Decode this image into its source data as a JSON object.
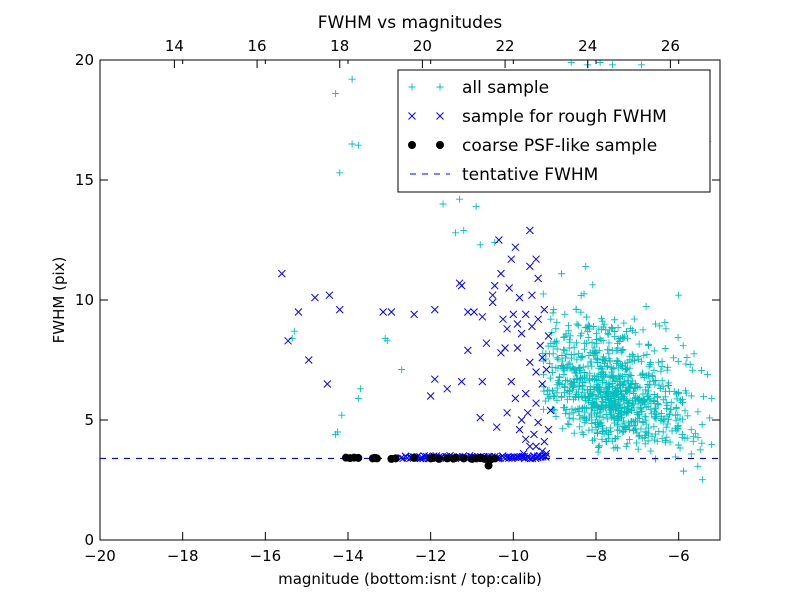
{
  "chart_data": {
    "type": "scatter",
    "title": "FWHM vs magnitudes",
    "xlabel": "magnitude (bottom:isnt / top:calib)",
    "ylabel": "FWHM (pix)",
    "xlim": [
      -20,
      -5
    ],
    "ylim": [
      0,
      20
    ],
    "top_axis": {
      "ticks": [
        14,
        16,
        18,
        20,
        22,
        24,
        26
      ],
      "offset": 32.2
    },
    "x_ticks": [
      "−20",
      "−18",
      "−16",
      "−14",
      "−12",
      "−10",
      "−8",
      "−6"
    ],
    "x_tick_values": [
      -20,
      -18,
      -16,
      -14,
      -12,
      -10,
      -8,
      -6
    ],
    "y_ticks": [
      "0",
      "5",
      "10",
      "15",
      "20"
    ],
    "y_tick_values": [
      0,
      5,
      10,
      15,
      20
    ],
    "grid": false,
    "legend_position": "top-right",
    "series": [
      {
        "name": "all sample",
        "marker": "plus",
        "color": "#00bfbf",
        "points": [
          [
            -14.3,
            18.6
          ],
          [
            -13.9,
            19.2
          ],
          [
            -13.9,
            16.5
          ],
          [
            -13.75,
            16.45
          ],
          [
            -14.2,
            15.3
          ],
          [
            -15.3,
            8.7
          ],
          [
            -15.35,
            8.4
          ],
          [
            -14.15,
            5.2
          ],
          [
            -14.25,
            4.5
          ],
          [
            -14.3,
            4.4
          ],
          [
            -13.7,
            6.3
          ],
          [
            -13.75,
            5.9
          ],
          [
            -13.1,
            8.4
          ],
          [
            -13.05,
            8.3
          ],
          [
            -12.7,
            7.1
          ],
          [
            -11.2,
            12.9
          ],
          [
            -11.4,
            12.8
          ],
          [
            -10.8,
            12.3
          ],
          [
            -10.45,
            12.4
          ],
          [
            -11.3,
            14.2
          ],
          [
            -11.7,
            14.0
          ],
          [
            -10.2,
            15.6
          ],
          [
            -10.9,
            13.9
          ],
          [
            -10.0,
            16.8
          ],
          [
            -12.6,
            16.7
          ],
          [
            -8.6,
            19.9
          ],
          [
            -8.2,
            19.8
          ],
          [
            -7.9,
            19.9
          ],
          [
            -7.6,
            19.8
          ],
          [
            -6.9,
            19.8
          ],
          [
            -5.3,
            16.6
          ],
          [
            -6.0,
            10.2
          ],
          [
            -5.8,
            7.6
          ],
          [
            -5.3,
            6.9
          ],
          [
            -5.2,
            5.9
          ]
        ],
        "cluster": {
          "center": [
            -7.6,
            5.4
          ],
          "spread": [
            0.95,
            1.75
          ],
          "count": 900,
          "xlim": [
            -9.3,
            -5.05
          ],
          "ylim": [
            2.1,
            19.5
          ],
          "seed": 7
        }
      },
      {
        "name": "sample for rough FWHM",
        "marker": "x",
        "color": "#0000ff",
        "points": [
          [
            -15.6,
            11.1
          ],
          [
            -14.8,
            10.1
          ],
          [
            -14.45,
            10.2
          ],
          [
            -15.2,
            9.5
          ],
          [
            -14.2,
            9.6
          ],
          [
            -15.45,
            8.3
          ],
          [
            -14.95,
            7.5
          ],
          [
            -14.5,
            6.5
          ],
          [
            -13.15,
            9.5
          ],
          [
            -12.95,
            9.5
          ],
          [
            -12.4,
            9.4
          ],
          [
            -11.9,
            9.6
          ],
          [
            -11.1,
            9.5
          ],
          [
            -10.95,
            9.5
          ],
          [
            -11.3,
            10.7
          ],
          [
            -11.25,
            10.6
          ],
          [
            -10.75,
            9.3
          ],
          [
            -11.1,
            7.9
          ],
          [
            -12.0,
            6.0
          ],
          [
            -11.6,
            6.3
          ],
          [
            -11.9,
            6.7
          ],
          [
            -11.25,
            6.6
          ],
          [
            -10.75,
            6.6
          ],
          [
            -10.8,
            5.1
          ],
          [
            -10.65,
            8.2
          ],
          [
            -10.45,
            10.6
          ],
          [
            -10.3,
            11.1
          ],
          [
            -10.05,
            11.7
          ],
          [
            -10.35,
            12.5
          ],
          [
            -10.5,
            10.2
          ],
          [
            -10.5,
            9.9
          ],
          [
            -10.2,
            8.0
          ],
          [
            -10.3,
            7.8
          ],
          [
            -10.05,
            6.6
          ],
          [
            -9.95,
            5.9
          ],
          [
            -10.15,
            5.3
          ],
          [
            -10.4,
            4.7
          ],
          [
            -9.85,
            4.6
          ],
          [
            -9.7,
            4.2
          ],
          [
            -9.6,
            11.4
          ],
          [
            -9.4,
            10.9
          ],
          [
            -9.7,
            9.4
          ],
          [
            -9.8,
            8.6
          ],
          [
            -9.9,
            8.0
          ],
          [
            -9.55,
            8.9
          ],
          [
            -9.35,
            8.1
          ],
          [
            -9.6,
            7.4
          ],
          [
            -9.45,
            7.0
          ],
          [
            -9.3,
            6.5
          ],
          [
            -9.7,
            6.1
          ],
          [
            -9.45,
            5.7
          ],
          [
            -9.65,
            5.3
          ],
          [
            -9.4,
            4.9
          ],
          [
            -9.5,
            4.4
          ],
          [
            -9.25,
            4.1
          ],
          [
            -9.6,
            3.9
          ],
          [
            -9.3,
            3.7
          ],
          [
            -9.75,
            3.6
          ],
          [
            -9.55,
            10.2
          ],
          [
            -9.25,
            9.6
          ],
          [
            -9.4,
            9.2
          ],
          [
            -9.15,
            8.5
          ],
          [
            -9.3,
            7.6
          ],
          [
            -9.2,
            7.1
          ],
          [
            -9.1,
            5.4
          ],
          [
            -9.15,
            4.6
          ],
          [
            -10.0,
            9.4
          ],
          [
            -9.9,
            9.0
          ],
          [
            -10.1,
            10.5
          ],
          [
            -9.85,
            10.1
          ],
          [
            -9.95,
            12.2
          ],
          [
            -9.6,
            12.9
          ],
          [
            -9.45,
            11.7
          ],
          [
            -10.15,
            8.8
          ],
          [
            -10.25,
            9.2
          ],
          [
            -9.8,
            5.0
          ],
          [
            -9.45,
            3.9
          ],
          [
            -9.2,
            3.6
          ]
        ],
        "baseline": {
          "x_from": -12.7,
          "x_to": -9.2,
          "y": 3.45,
          "count": 90
        }
      },
      {
        "name": "coarse PSF-like sample",
        "marker": "circle",
        "color": "#000000",
        "points": [
          [
            -14.05,
            3.43
          ],
          [
            -13.95,
            3.41
          ],
          [
            -13.85,
            3.43
          ],
          [
            -13.75,
            3.42
          ],
          [
            -13.4,
            3.4
          ],
          [
            -13.35,
            3.42
          ],
          [
            -13.3,
            3.4
          ],
          [
            -12.95,
            3.38
          ],
          [
            -12.85,
            3.4
          ],
          [
            -12.4,
            3.42
          ],
          [
            -12.0,
            3.4
          ],
          [
            -11.95,
            3.42
          ],
          [
            -11.8,
            3.38
          ],
          [
            -11.6,
            3.4
          ],
          [
            -11.45,
            3.39
          ],
          [
            -11.4,
            3.42
          ],
          [
            -11.2,
            3.4
          ],
          [
            -11.0,
            3.38
          ],
          [
            -10.9,
            3.4
          ],
          [
            -10.8,
            3.41
          ],
          [
            -10.7,
            3.38
          ],
          [
            -10.6,
            3.1
          ],
          [
            -10.55,
            3.35
          ],
          [
            -10.45,
            3.4
          ]
        ]
      },
      {
        "name": "tentative FWHM",
        "marker": "dashed-line",
        "color": "#0000ff",
        "y": 3.4
      }
    ]
  }
}
